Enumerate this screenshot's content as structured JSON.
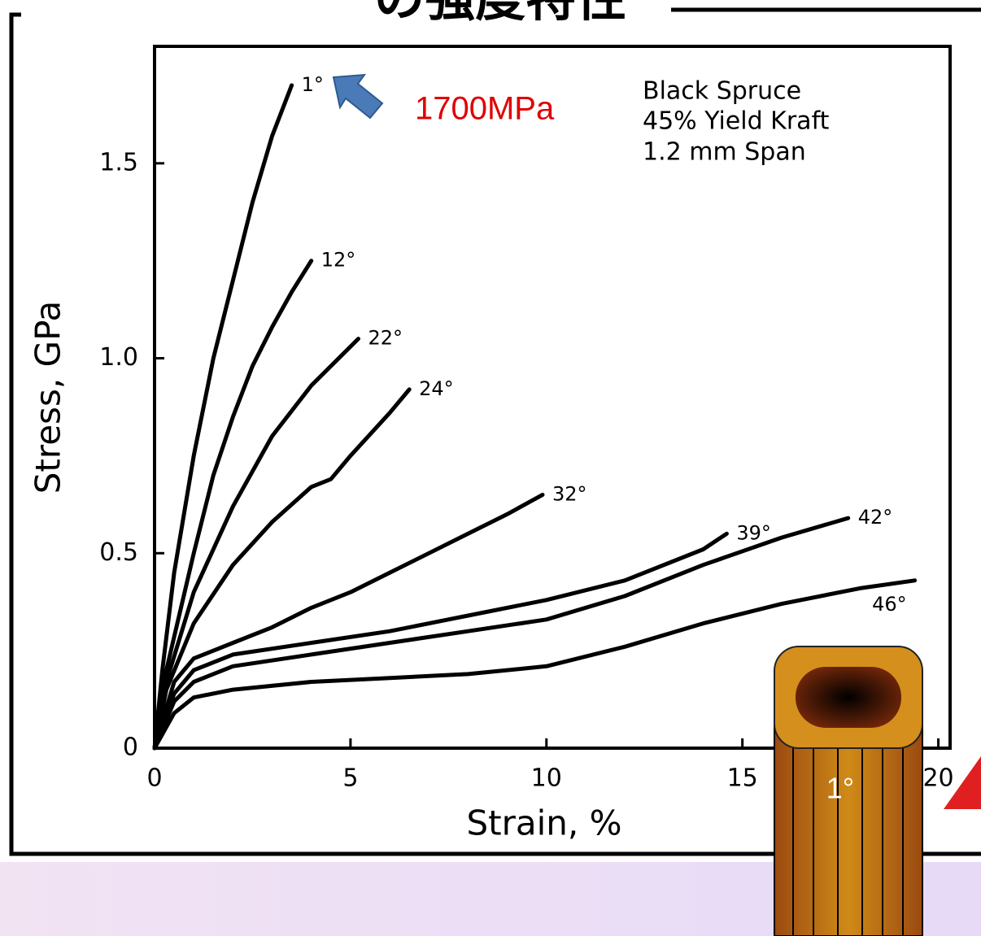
{
  "slide_title": "の強度特性",
  "chart_data": {
    "type": "line",
    "xlabel": "Strain, %",
    "ylabel": "Stress, GPa",
    "annotations": [
      "1700MPa",
      "Black Spruce",
      "45% Yield Kraft",
      "1.2 mm Span"
    ],
    "xlim": [
      0,
      20.3
    ],
    "ylim": [
      0,
      1.8
    ],
    "xticks": [
      0,
      5,
      10,
      15,
      20
    ],
    "yticks": [
      0,
      0.5,
      {
        "value": 1,
        "label": "1.0"
      },
      1.5
    ],
    "color": "#000000",
    "series": [
      {
        "name": "1°",
        "x": [
          0,
          0.2,
          0.5,
          1,
          1.5,
          2,
          2.5,
          3,
          3.5
        ],
        "values": [
          0,
          0.2,
          0.45,
          0.75,
          1.0,
          1.2,
          1.4,
          1.57,
          1.7
        ]
      },
      {
        "name": "12°",
        "x": [
          0,
          0.3,
          1,
          1.5,
          2,
          2.5,
          3,
          3.5,
          4
        ],
        "values": [
          0,
          0.2,
          0.5,
          0.7,
          0.85,
          0.98,
          1.08,
          1.17,
          1.25
        ]
      },
      {
        "name": "22°",
        "x": [
          0,
          0.3,
          1,
          2,
          3,
          4,
          5.2
        ],
        "values": [
          0,
          0.17,
          0.4,
          0.62,
          0.8,
          0.93,
          1.05
        ]
      },
      {
        "name": "24°",
        "x": [
          0,
          0.3,
          1,
          2,
          3,
          4,
          4.5,
          5,
          6,
          6.5
        ],
        "values": [
          0,
          0.15,
          0.32,
          0.47,
          0.58,
          0.67,
          0.69,
          0.75,
          0.86,
          0.92
        ]
      },
      {
        "name": "32°",
        "x": [
          0,
          0.5,
          1,
          2,
          3,
          4,
          5,
          6,
          7,
          8,
          9,
          9.9
        ],
        "values": [
          0,
          0.17,
          0.23,
          0.27,
          0.31,
          0.36,
          0.4,
          0.45,
          0.5,
          0.55,
          0.6,
          0.65
        ]
      },
      {
        "name": "39°",
        "x": [
          0,
          0.5,
          1,
          2,
          4,
          6,
          8,
          10,
          12,
          14,
          14.6
        ],
        "values": [
          0,
          0.14,
          0.2,
          0.24,
          0.27,
          0.3,
          0.34,
          0.38,
          0.43,
          0.51,
          0.55
        ]
      },
      {
        "name": "42°",
        "x": [
          0,
          0.5,
          1,
          2,
          4,
          6,
          8,
          10,
          12,
          14,
          16,
          17.7
        ],
        "values": [
          0,
          0.12,
          0.17,
          0.21,
          0.24,
          0.27,
          0.3,
          0.33,
          0.39,
          0.47,
          0.54,
          0.59
        ]
      },
      {
        "name": "46°",
        "x": [
          0,
          0.5,
          1,
          2,
          4,
          6,
          8,
          10,
          12,
          14,
          16,
          18,
          19.4
        ],
        "values": [
          0,
          0.09,
          0.13,
          0.15,
          0.17,
          0.18,
          0.19,
          0.21,
          0.26,
          0.32,
          0.37,
          0.41,
          0.43
        ]
      }
    ]
  },
  "illustration_label": "1°"
}
